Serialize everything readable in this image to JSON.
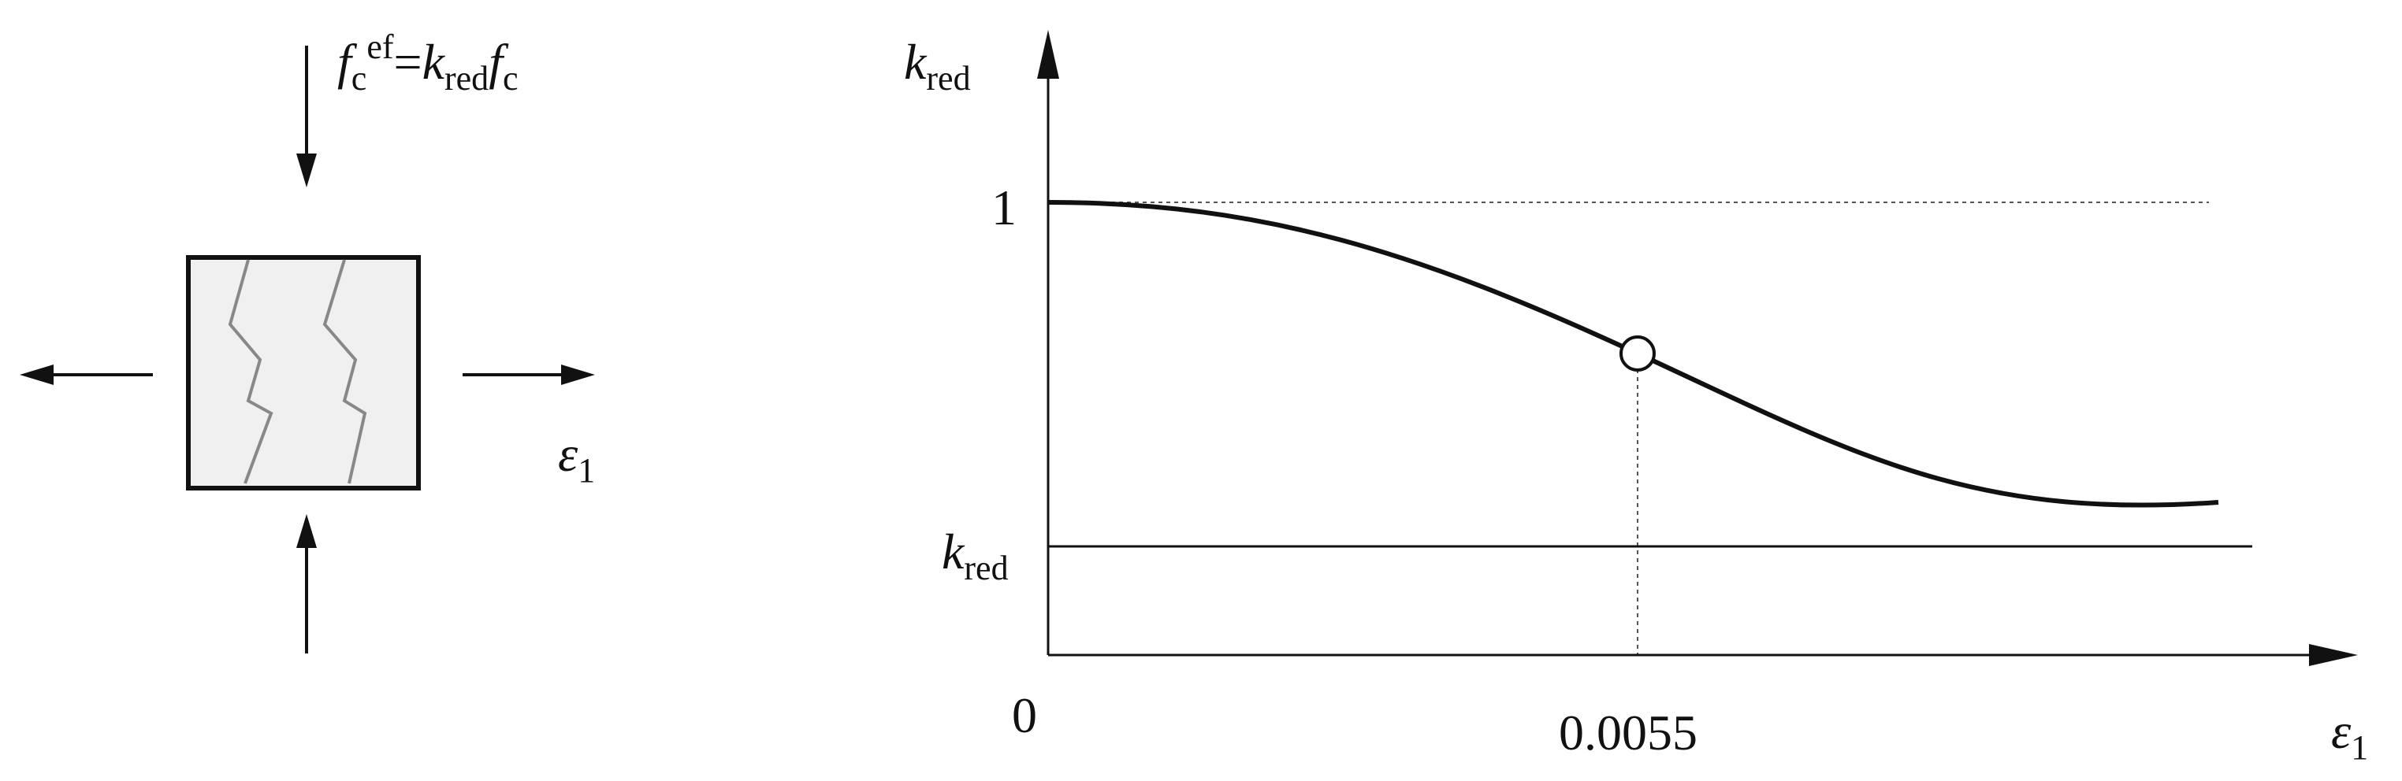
{
  "formula": {
    "f": "f",
    "f_sub": "c",
    "f_sup": "ef",
    "equals": "=",
    "k": "k",
    "k_sub": "red",
    "f2": "f",
    "f2_sub": "c"
  },
  "strain_label": {
    "symbol": "ε",
    "sub": "1"
  },
  "plot": {
    "y_axis_label": {
      "symbol": "k",
      "sub": "red"
    },
    "y_tick": "1",
    "min_label": {
      "symbol": "k",
      "sub": "red"
    },
    "origin": "0",
    "x_tick": "0.0055",
    "x_axis_label": {
      "symbol": "ε",
      "sub": "1"
    }
  }
}
